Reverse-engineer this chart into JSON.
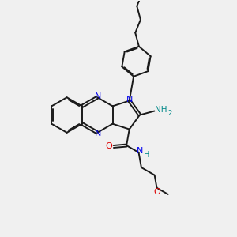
{
  "bg_color": "#f0f0f0",
  "bond_color": "#1a1a1a",
  "N_color": "#0000ee",
  "O_color": "#dd0000",
  "NH2_color": "#008888",
  "lw": 1.4,
  "dbo": 0.055,
  "xlim": [
    0,
    10
  ],
  "ylim": [
    0,
    10
  ]
}
